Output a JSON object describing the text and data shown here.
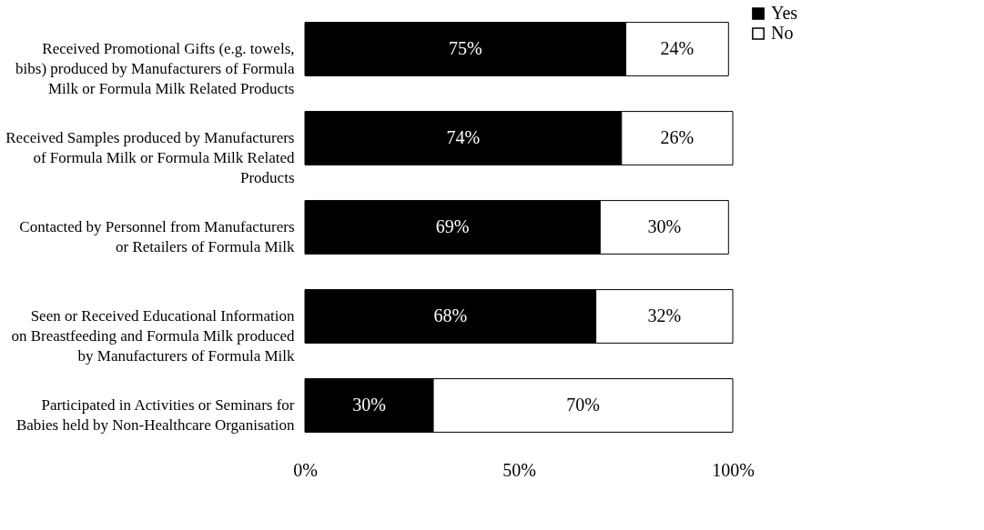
{
  "chart_data": {
    "type": "bar",
    "orientation": "horizontal",
    "stacked": true,
    "categories": [
      "Received Promotional Gifts (e.g. towels, bibs) produced by Manufacturers of Formula Milk or Formula Milk Related Products",
      "Received Samples produced by Manufacturers of Formula Milk or Formula Milk Related Products",
      "Contacted by Personnel from Manufacturers or Retailers of Formula Milk",
      "Seen or Received Educational Information on Breastfeeding and Formula Milk produced by Manufacturers of Formula Milk",
      "Participated in Activities or Seminars for Babies held by Non-Healthcare Organisation"
    ],
    "series": [
      {
        "name": "Yes",
        "color": "#000000",
        "values": [
          75,
          74,
          69,
          68,
          30
        ],
        "value_labels": [
          "75%",
          "74%",
          "69%",
          "68%",
          "30%"
        ]
      },
      {
        "name": "No",
        "color": "#ffffff",
        "values": [
          24,
          26,
          30,
          32,
          70
        ],
        "value_labels": [
          "24%",
          "26%",
          "30%",
          "32%",
          "70%"
        ]
      }
    ],
    "xlim": [
      0,
      100
    ],
    "xticks": [
      {
        "value": 0,
        "label": "0%"
      },
      {
        "value": 50,
        "label": "50%"
      },
      {
        "value": 100,
        "label": "100%"
      }
    ],
    "legend": "right",
    "grid": false
  }
}
